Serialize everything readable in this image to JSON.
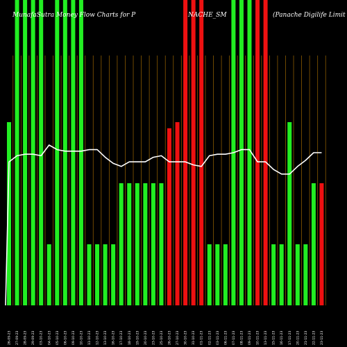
{
  "chart_data": {
    "type": "bar",
    "title_left": "MunafaSutra Money Flow Charts for P",
    "title_mid": "NACHE_SM",
    "title_right": "(Panache Digilife Limit",
    "colors": {
      "background": "#000000",
      "up": "#22ee22",
      "down": "#ee1111",
      "grid": "#8a5a00",
      "line": "#ffffff",
      "text": "#ffffff"
    },
    "categories": [
      "26-09-23",
      "27-09-23",
      "28-09-23",
      "29-09-23",
      "03-10-23",
      "04-10-23",
      "05-10-23",
      "06-10-23",
      "09-10-23",
      "10-10-23",
      "11-10-23",
      "12-10-23",
      "13-10-23",
      "16-10-23",
      "17-10-23",
      "18-10-23",
      "19-10-23",
      "20-10-23",
      "23-10-23",
      "25-10-23",
      "26-10-23",
      "27-10-23",
      "30-10-23",
      "31-10-23",
      "01-11-23",
      "02-11-23",
      "03-11-23",
      "06-11-23",
      "07-11-23",
      "08-11-23",
      "09-11-23",
      "10-11-23",
      "13-11-23",
      "15-11-23",
      "16-11-23",
      "17-11-23",
      "20-11-23",
      "21-11-23",
      "22-11-23",
      "23-11-23"
    ],
    "bars": [
      {
        "value": 60,
        "dir": "up"
      },
      {
        "value": 100,
        "dir": "up"
      },
      {
        "value": 100,
        "dir": "up"
      },
      {
        "value": 100,
        "dir": "up"
      },
      {
        "value": 100,
        "dir": "up"
      },
      {
        "value": 20,
        "dir": "up"
      },
      {
        "value": 100,
        "dir": "up"
      },
      {
        "value": 100,
        "dir": "up"
      },
      {
        "value": 100,
        "dir": "up"
      },
      {
        "value": 100,
        "dir": "up"
      },
      {
        "value": 20,
        "dir": "up"
      },
      {
        "value": 20,
        "dir": "up"
      },
      {
        "value": 20,
        "dir": "up"
      },
      {
        "value": 20,
        "dir": "up"
      },
      {
        "value": 40,
        "dir": "up"
      },
      {
        "value": 40,
        "dir": "up"
      },
      {
        "value": 40,
        "dir": "up"
      },
      {
        "value": 40,
        "dir": "up"
      },
      {
        "value": 40,
        "dir": "up"
      },
      {
        "value": 40,
        "dir": "up"
      },
      {
        "value": 58,
        "dir": "down"
      },
      {
        "value": 60,
        "dir": "down"
      },
      {
        "value": 100,
        "dir": "down"
      },
      {
        "value": 100,
        "dir": "down"
      },
      {
        "value": 100,
        "dir": "down"
      },
      {
        "value": 20,
        "dir": "up"
      },
      {
        "value": 20,
        "dir": "up"
      },
      {
        "value": 20,
        "dir": "up"
      },
      {
        "value": 100,
        "dir": "up"
      },
      {
        "value": 100,
        "dir": "up"
      },
      {
        "value": 100,
        "dir": "up"
      },
      {
        "value": 100,
        "dir": "down"
      },
      {
        "value": 100,
        "dir": "down"
      },
      {
        "value": 20,
        "dir": "up"
      },
      {
        "value": 20,
        "dir": "up"
      },
      {
        "value": 60,
        "dir": "up"
      },
      {
        "value": 20,
        "dir": "up"
      },
      {
        "value": 20,
        "dir": "up"
      },
      {
        "value": 40,
        "dir": "up"
      },
      {
        "value": 40,
        "dir": "down"
      }
    ],
    "line": [
      47,
      49,
      49.5,
      49.5,
      49,
      52.5,
      51,
      50.5,
      50.5,
      50.5,
      51,
      51,
      48.5,
      46.5,
      45.5,
      47,
      47,
      47,
      48.5,
      49,
      47,
      47,
      47,
      46,
      45.5,
      49,
      49.5,
      49.5,
      50,
      51,
      51,
      47,
      47,
      44.5,
      43,
      43,
      45.5,
      47.5,
      50,
      50
    ],
    "ylim": [
      0,
      100
    ],
    "grid": true
  }
}
